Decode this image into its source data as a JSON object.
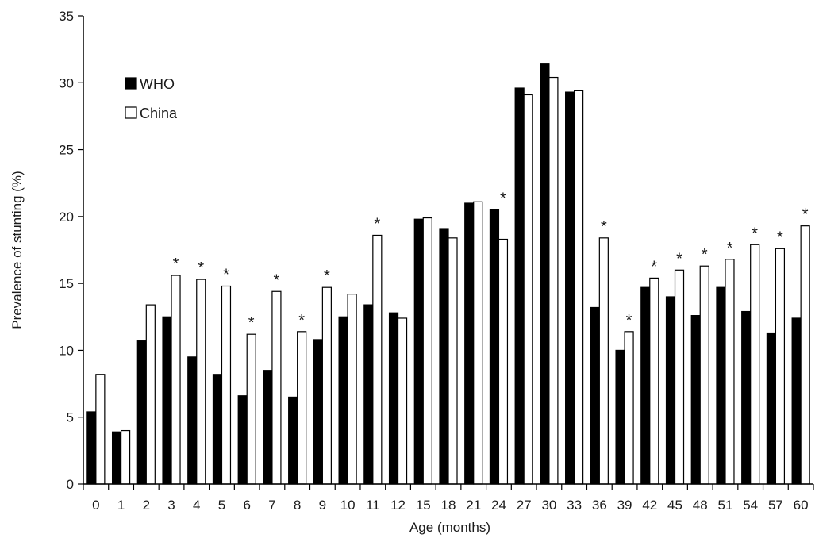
{
  "chart_data": {
    "type": "bar",
    "title": "",
    "xlabel": "Age (months)",
    "ylabel": "Prevalence of stunting (%)",
    "ylim": [
      0,
      35
    ],
    "yticks": [
      0,
      5,
      10,
      15,
      20,
      25,
      30,
      35
    ],
    "legend_position": "top-left",
    "grid": false,
    "categories": [
      "0",
      "1",
      "2",
      "3",
      "4",
      "5",
      "6",
      "7",
      "8",
      "9",
      "10",
      "11",
      "12",
      "15",
      "18",
      "21",
      "24",
      "27",
      "30",
      "33",
      "36",
      "39",
      "42",
      "45",
      "48",
      "51",
      "54",
      "57",
      "60"
    ],
    "series": [
      {
        "name": "WHO",
        "color": "#000000",
        "values": [
          5.4,
          3.9,
          10.7,
          12.5,
          9.5,
          8.2,
          6.6,
          8.5,
          6.5,
          10.8,
          12.5,
          13.4,
          12.8,
          19.8,
          19.1,
          21.0,
          20.5,
          29.6,
          31.4,
          29.3,
          13.2,
          10.0,
          14.7,
          14.0,
          12.6,
          14.7,
          12.9,
          11.3,
          12.4
        ]
      },
      {
        "name": "China",
        "color": "#ffffff",
        "values": [
          8.2,
          4.0,
          13.4,
          15.6,
          15.3,
          14.8,
          11.2,
          14.4,
          11.4,
          14.7,
          14.2,
          18.6,
          12.4,
          19.9,
          18.4,
          21.1,
          18.3,
          29.1,
          30.4,
          29.4,
          18.4,
          11.4,
          15.4,
          16.0,
          16.3,
          16.8,
          17.9,
          17.6,
          19.3
        ]
      }
    ],
    "significance_marker": "*",
    "significant_categories": [
      "3",
      "4",
      "5",
      "6",
      "7",
      "8",
      "9",
      "11",
      "24",
      "36",
      "39",
      "42",
      "45",
      "48",
      "51",
      "54",
      "57",
      "60"
    ]
  }
}
